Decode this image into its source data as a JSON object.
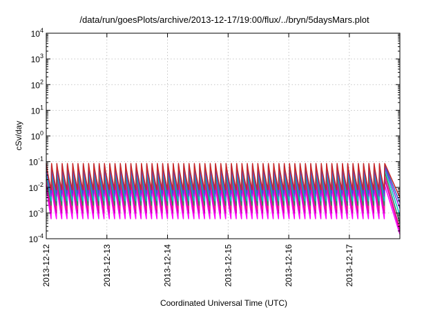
{
  "chart_data": {
    "type": "line",
    "title": "/data/run/goesPlots/archive/2013-12-17/19:00/flux/../bryn/5daysMars.plot",
    "xlabel": "Coordinated Universal Time (UTC)",
    "ylabel": "cSv/day",
    "yscale": "log",
    "ylim": [
      0.0001,
      10000
    ],
    "xlim": [
      "2013-12-12",
      "2013-12-17 20:00"
    ],
    "x_ticks": [
      "2013-12-12",
      "2013-12-13",
      "2013-12-14",
      "2013-12-15",
      "2013-12-16",
      "2013-12-17"
    ],
    "y_ticks": [
      {
        "base": "10",
        "exp": "-4"
      },
      {
        "base": "10",
        "exp": "-3"
      },
      {
        "base": "10",
        "exp": "-2"
      },
      {
        "base": "10",
        "exp": "-1"
      },
      {
        "base": "10",
        "exp": "0"
      },
      {
        "base": "10",
        "exp": "1"
      },
      {
        "base": "10",
        "exp": "2"
      },
      {
        "base": "10",
        "exp": "3"
      },
      {
        "base": "10",
        "exp": "4"
      }
    ],
    "grid": true,
    "pattern": {
      "cycles": 64,
      "last_full_cycle_ends": "2013-12-17 14:00",
      "tail_end": "2013-12-17 20:00"
    },
    "series": [
      {
        "color": "#ff00ff",
        "peak": 0.012,
        "trough": 0.0006,
        "tail_end": 0.00015
      },
      {
        "color": "#cc00aa",
        "peak": 0.02,
        "trough": 0.001,
        "tail_end": 0.0002
      },
      {
        "color": "#ff1493",
        "peak": 0.028,
        "trough": 0.0014,
        "tail_end": 0.00025
      },
      {
        "color": "#2a8a5a",
        "peak": 0.04,
        "trough": 0.002,
        "tail_end": 0.0004
      },
      {
        "color": "#00c8c8",
        "peak": 0.055,
        "trough": 0.003,
        "tail_end": 0.0008
      },
      {
        "color": "#8a2be2",
        "peak": 0.065,
        "trough": 0.0045,
        "tail_end": 0.0015
      },
      {
        "color": "#3060d0",
        "peak": 0.075,
        "trough": 0.006,
        "tail_end": 0.0025
      },
      {
        "color": "#c82828",
        "peak": 0.085,
        "trough": 0.008,
        "tail_end": 0.004
      }
    ]
  }
}
